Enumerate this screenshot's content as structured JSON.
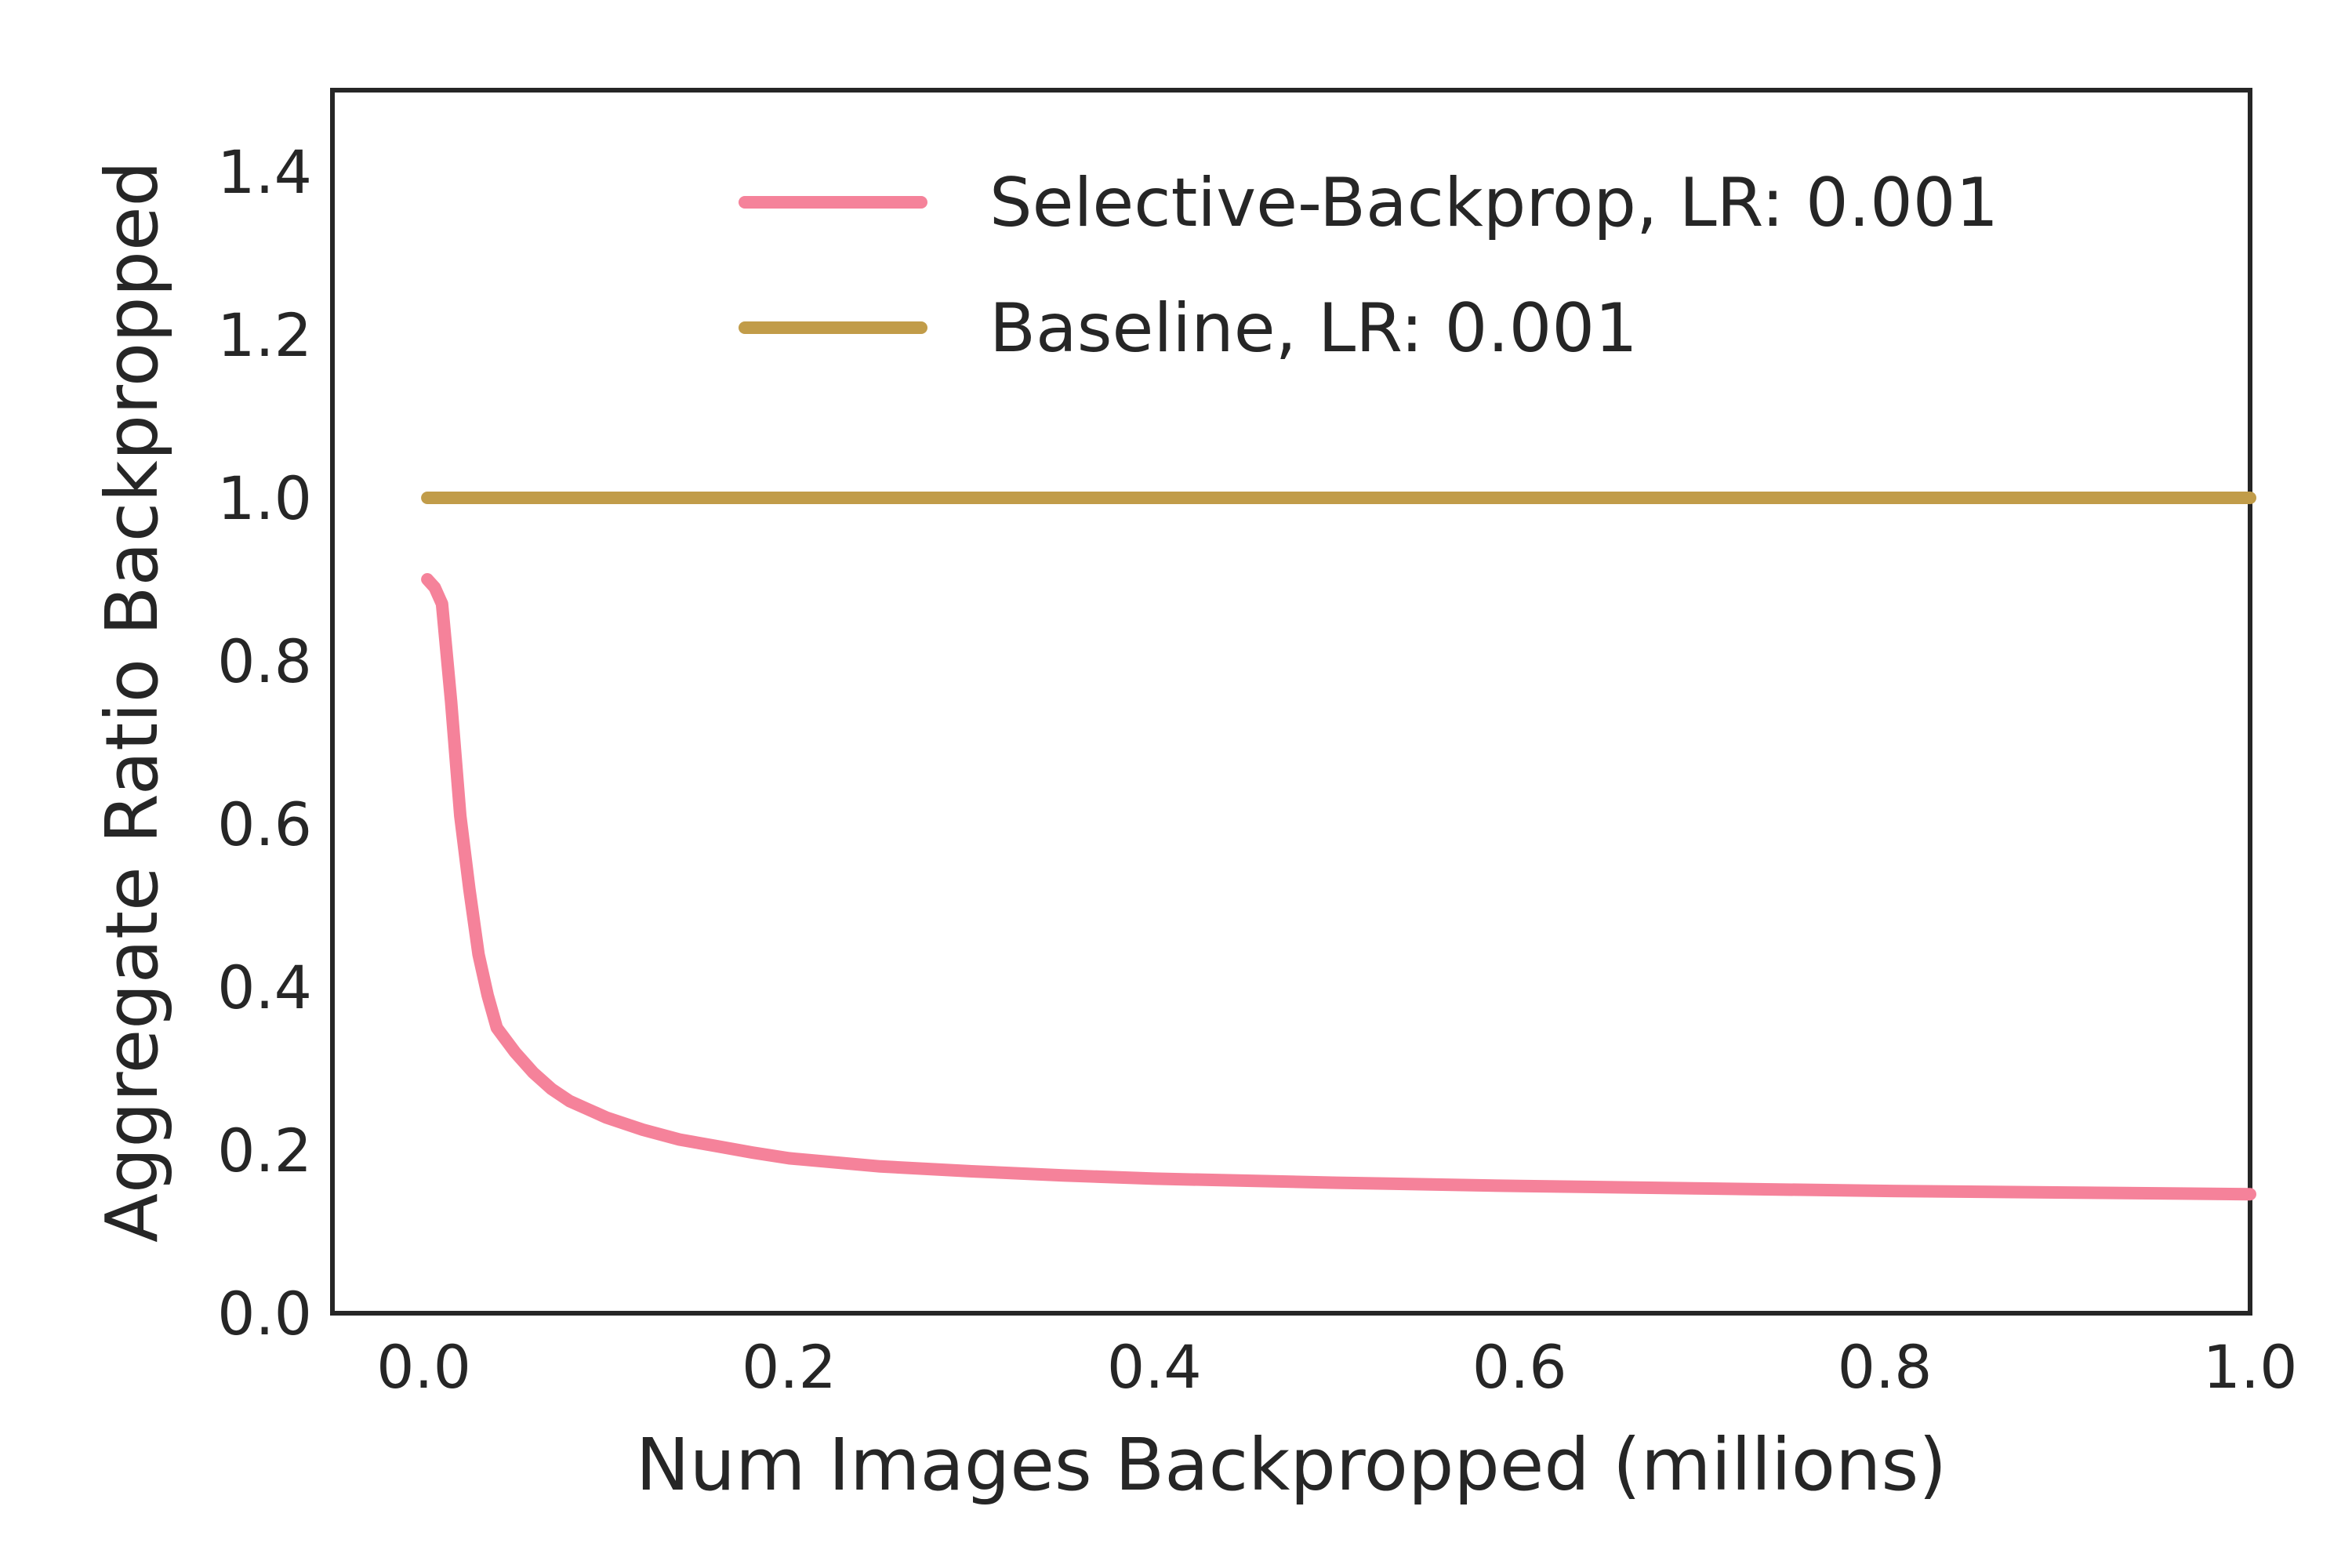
{
  "chart_data": {
    "type": "line",
    "xlabel": "Num Images Backpropped (millions)",
    "ylabel": "Aggregate Ratio Backpropped",
    "xlim": [
      -0.05,
      1.0
    ],
    "ylim": [
      0.0,
      1.5
    ],
    "xticks": [
      "0.0",
      "0.2",
      "0.4",
      "0.6",
      "0.8",
      "1.0"
    ],
    "xtick_values": [
      0.0,
      0.2,
      0.4,
      0.6,
      0.8,
      1.0
    ],
    "yticks": [
      "0.0",
      "0.2",
      "0.4",
      "0.6",
      "0.8",
      "1.0",
      "1.2",
      "1.4"
    ],
    "ytick_values": [
      0.0,
      0.2,
      0.4,
      0.6,
      0.8,
      1.0,
      1.2,
      1.4
    ],
    "grid": false,
    "legend_position": "top-right",
    "series": [
      {
        "name": "Selective-Backprop, LR: 0.001",
        "color": "#f5829a",
        "x": [
          0.002,
          0.006,
          0.01,
          0.015,
          0.02,
          0.025,
          0.03,
          0.035,
          0.04,
          0.05,
          0.06,
          0.07,
          0.08,
          0.09,
          0.1,
          0.12,
          0.14,
          0.16,
          0.18,
          0.2,
          0.25,
          0.3,
          0.35,
          0.4,
          0.5,
          0.6,
          0.7,
          0.8,
          0.9,
          1.0
        ],
        "y": [
          0.9,
          0.89,
          0.87,
          0.75,
          0.61,
          0.52,
          0.44,
          0.39,
          0.35,
          0.32,
          0.295,
          0.275,
          0.26,
          0.25,
          0.24,
          0.225,
          0.213,
          0.205,
          0.197,
          0.19,
          0.18,
          0.174,
          0.169,
          0.165,
          0.16,
          0.156,
          0.153,
          0.15,
          0.148,
          0.146
        ]
      },
      {
        "name": "Baseline, LR: 0.001",
        "color": "#c19c49",
        "x": [
          0.002,
          1.0
        ],
        "y": [
          1.0,
          1.0
        ]
      }
    ]
  }
}
